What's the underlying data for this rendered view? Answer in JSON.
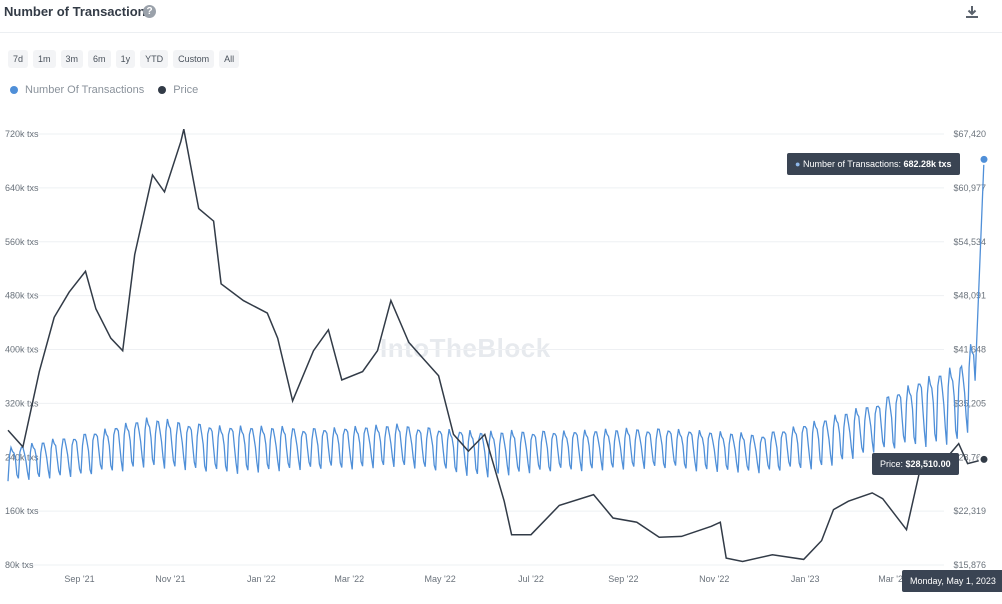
{
  "header": {
    "title": "Number of Transactions",
    "help_icon": "question-circle-icon",
    "download_icon": "download-icon"
  },
  "range_buttons": [
    "7d",
    "1m",
    "3m",
    "6m",
    "1y",
    "YTD",
    "Custom",
    "All"
  ],
  "watermark": "IntoTheBlock",
  "tooltips": {
    "transactions_label": "Number of Transactions:",
    "transactions_value": "682.28k txs",
    "price_label": "Price:",
    "price_value": "$28,510.00",
    "date": "Monday, May 1, 2023"
  },
  "colors": {
    "transactions": "#4f8fd8",
    "price": "#323b47",
    "tooltip_bg": "#3a4453"
  },
  "chart_data": {
    "type": "line",
    "title": "Number of Transactions",
    "legend": [
      "Number Of Transactions",
      "Price"
    ],
    "legend_position": "top-left",
    "x_ticks": [
      "Sep '21",
      "Nov '21",
      "Jan '22",
      "Mar '22",
      "May '22",
      "Jul '22",
      "Sep '22",
      "Nov '22",
      "Jan '23",
      "Mar '23"
    ],
    "x_range": [
      "2021-07-15",
      "2023-05-01"
    ],
    "y_left": {
      "label": "",
      "ticks": [
        "80k txs",
        "160k txs",
        "240k txs",
        "320k txs",
        "400k txs",
        "480k txs",
        "560k txs",
        "640k txs",
        "720k txs"
      ],
      "range": [
        80000,
        720000
      ]
    },
    "y_right": {
      "label": "",
      "ticks": [
        "$15,876",
        "$22,319",
        "$28,762",
        "$35,205",
        "$41,648",
        "$48,091",
        "$54,534",
        "$60,977",
        "$67,420"
      ],
      "range": [
        15876,
        67420
      ]
    },
    "grid": true,
    "series": [
      {
        "name": "Number Of Transactions",
        "axis": "left",
        "color": "#4f8fd8",
        "pattern": "weekly oscillation",
        "points": [
          [
            "2021-07-15",
            205000,
            255000
          ],
          [
            "2021-09-01",
            210000,
            275000
          ],
          [
            "2021-10-15",
            225000,
            300000
          ],
          [
            "2021-12-01",
            215000,
            290000
          ],
          [
            "2022-02-01",
            220000,
            285000
          ],
          [
            "2022-04-01",
            225000,
            290000
          ],
          [
            "2022-06-01",
            210000,
            280000
          ],
          [
            "2022-08-01",
            220000,
            282000
          ],
          [
            "2022-10-01",
            222000,
            285000
          ],
          [
            "2022-12-01",
            215000,
            275000
          ],
          [
            "2023-01-15",
            225000,
            300000
          ],
          [
            "2023-02-15",
            245000,
            320000
          ],
          [
            "2023-03-15",
            255000,
            355000
          ],
          [
            "2023-04-15",
            260000,
            380000
          ],
          [
            "2023-04-25",
            290000,
            420000
          ],
          [
            "2023-05-01",
            682280,
            682280
          ]
        ]
      },
      {
        "name": "Price",
        "axis": "right",
        "color": "#323b47",
        "points": [
          [
            "2021-07-15",
            32000
          ],
          [
            "2021-07-25",
            30000
          ],
          [
            "2021-08-05",
            39000
          ],
          [
            "2021-08-15",
            45500
          ],
          [
            "2021-08-25",
            48500
          ],
          [
            "2021-09-05",
            51000
          ],
          [
            "2021-09-12",
            46500
          ],
          [
            "2021-09-22",
            43000
          ],
          [
            "2021-09-30",
            41500
          ],
          [
            "2021-10-08",
            53000
          ],
          [
            "2021-10-20",
            62500
          ],
          [
            "2021-10-28",
            60500
          ],
          [
            "2021-11-08",
            66500
          ],
          [
            "2021-11-10",
            68000
          ],
          [
            "2021-11-20",
            58500
          ],
          [
            "2021-11-30",
            57000
          ],
          [
            "2021-12-05",
            49500
          ],
          [
            "2021-12-20",
            47500
          ],
          [
            "2022-01-05",
            46000
          ],
          [
            "2022-01-12",
            43000
          ],
          [
            "2022-01-22",
            35500
          ],
          [
            "2022-02-05",
            41500
          ],
          [
            "2022-02-15",
            44000
          ],
          [
            "2022-02-24",
            38000
          ],
          [
            "2022-03-10",
            39000
          ],
          [
            "2022-03-20",
            41500
          ],
          [
            "2022-03-29",
            47500
          ],
          [
            "2022-04-10",
            42500
          ],
          [
            "2022-04-20",
            40500
          ],
          [
            "2022-04-30",
            38500
          ],
          [
            "2022-05-10",
            31500
          ],
          [
            "2022-05-20",
            29500
          ],
          [
            "2022-05-31",
            31500
          ],
          [
            "2022-06-13",
            23500
          ],
          [
            "2022-06-18",
            19500
          ],
          [
            "2022-07-01",
            19500
          ],
          [
            "2022-07-20",
            23000
          ],
          [
            "2022-08-12",
            24300
          ],
          [
            "2022-08-25",
            21500
          ],
          [
            "2022-09-10",
            21000
          ],
          [
            "2022-09-25",
            19200
          ],
          [
            "2022-10-10",
            19300
          ],
          [
            "2022-10-30",
            20500
          ],
          [
            "2022-11-05",
            21000
          ],
          [
            "2022-11-09",
            16700
          ],
          [
            "2022-11-20",
            16300
          ],
          [
            "2022-12-10",
            17100
          ],
          [
            "2022-12-31",
            16550
          ],
          [
            "2023-01-12",
            18800
          ],
          [
            "2023-01-20",
            22500
          ],
          [
            "2023-01-30",
            23500
          ],
          [
            "2023-02-15",
            24500
          ],
          [
            "2023-02-22",
            23800
          ],
          [
            "2023-03-10",
            20100
          ],
          [
            "2023-03-20",
            28000
          ],
          [
            "2023-04-05",
            28500
          ],
          [
            "2023-04-14",
            30400
          ],
          [
            "2023-04-20",
            28000
          ],
          [
            "2023-05-01",
            28510
          ]
        ]
      }
    ]
  }
}
